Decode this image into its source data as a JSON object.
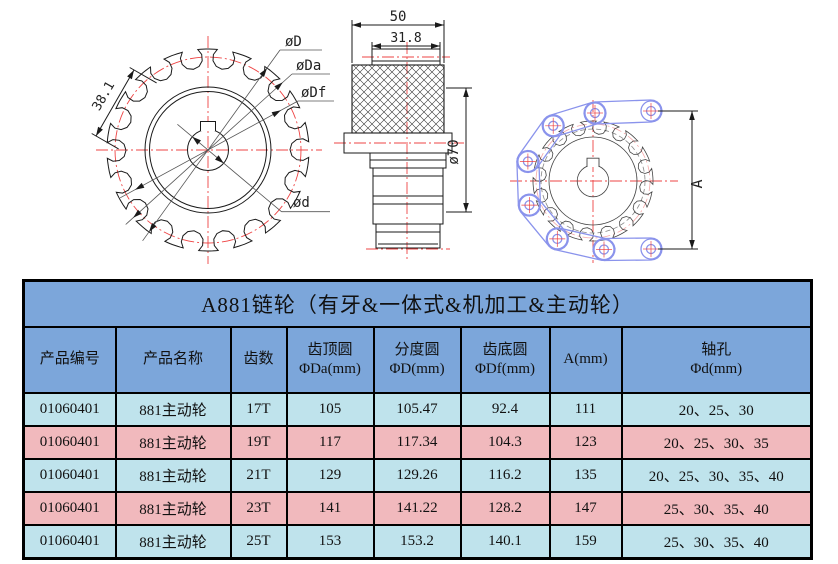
{
  "colors": {
    "header_blue": "#7CA6DA",
    "row_cyan": "#BFE3EC",
    "row_pink": "#F1B9BD",
    "centerline_red": "#EE4444",
    "chain_blue": "#8A93EC",
    "line_black": "#1A1A1A"
  },
  "drawing": {
    "front_view": {
      "pitch_dim": "38.1",
      "outer_label": "øD",
      "tip_label": "øDa",
      "root_label": "øDf",
      "bore_label": "ød"
    },
    "side_view": {
      "width_dim": "50",
      "hub_width_dim": "31.8",
      "dia_dim": "ø70"
    },
    "chain_view": {
      "height_dim": "A"
    }
  },
  "table": {
    "title": "A881链轮（有牙&一体式&机加工&主动轮）",
    "headers": [
      {
        "line1": "产品编号",
        "line2": ""
      },
      {
        "line1": "产品名称",
        "line2": ""
      },
      {
        "line1": "齿数",
        "line2": ""
      },
      {
        "line1": "齿顶圆",
        "line2": "ΦDa(mm)"
      },
      {
        "line1": "分度圆",
        "line2": "ΦD(mm)"
      },
      {
        "line1": "齿底圆",
        "line2": "ΦDf(mm)"
      },
      {
        "line1": "A(mm)",
        "line2": ""
      },
      {
        "line1": "轴孔",
        "line2": "Φd(mm)"
      }
    ],
    "rows": [
      [
        "01060401",
        "881主动轮",
        "17T",
        "105",
        "105.47",
        "92.4",
        "111",
        "20、25、30"
      ],
      [
        "01060401",
        "881主动轮",
        "19T",
        "117",
        "117.34",
        "104.3",
        "123",
        "20、25、30、35"
      ],
      [
        "01060401",
        "881主动轮",
        "21T",
        "129",
        "129.26",
        "116.2",
        "135",
        "20、25、30、35、40"
      ],
      [
        "01060401",
        "881主动轮",
        "23T",
        "141",
        "141.22",
        "128.2",
        "147",
        "25、30、35、40"
      ],
      [
        "01060401",
        "881主动轮",
        "25T",
        "153",
        "153.2",
        "140.1",
        "159",
        "25、30、35、40"
      ]
    ]
  }
}
